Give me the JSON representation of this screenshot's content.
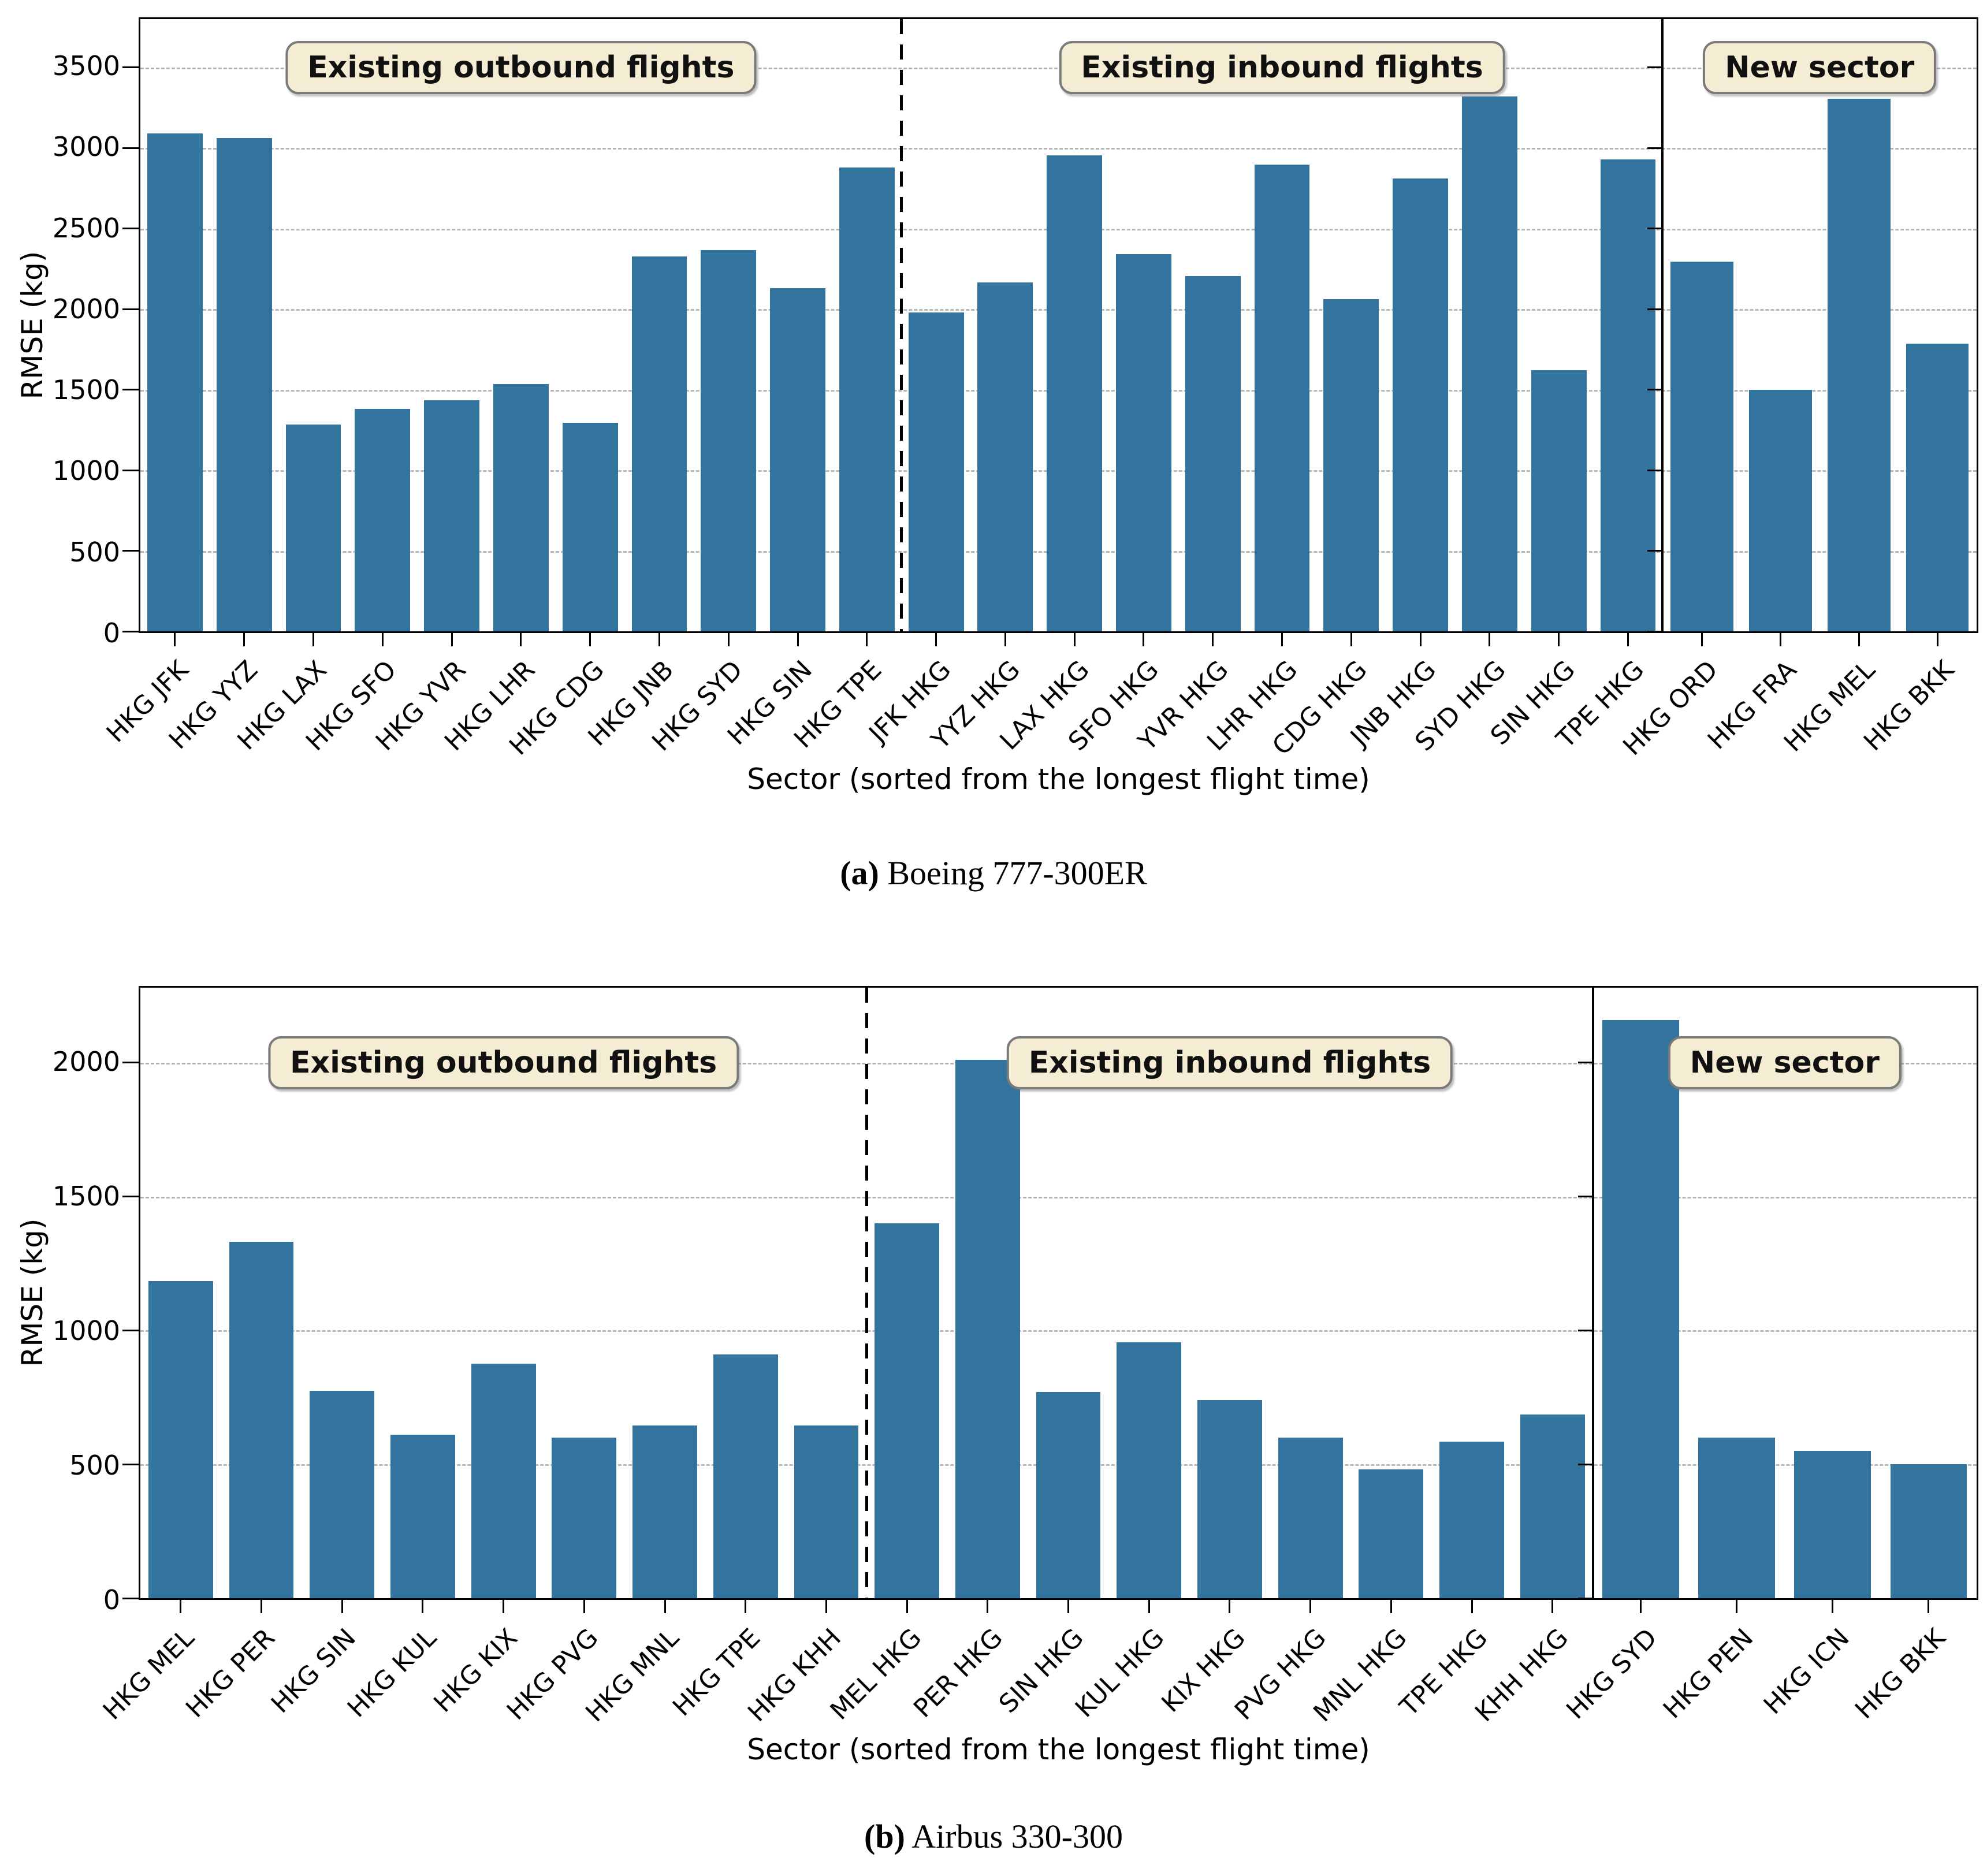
{
  "colors": {
    "bar": "#33749f",
    "annotation_bg": "#f5ecd4",
    "annotation_border": "#7a7a7a",
    "grid": "#b8b8b8",
    "separator": "#000000"
  },
  "chart_data": [
    {
      "type": "bar",
      "caption": {
        "prefix": "(a)",
        "text": "Boeing 777-300ER"
      },
      "ylabel": "RMSE (kg)",
      "xlabel": "Sector (sorted from the longest flight time)",
      "ylim": [
        0,
        3800
      ],
      "yticks": [
        0,
        500,
        1000,
        1500,
        2000,
        2500,
        3000,
        3500
      ],
      "grid": "horizontal-dashed",
      "legend_position": "none",
      "main_panel_fraction": 0.829,
      "sections": [
        {
          "label": "Existing outbound flights",
          "categories": [
            "HKG JFK",
            "HKG YYZ",
            "HKG LAX",
            "HKG SFO",
            "HKG YVR",
            "HKG LHR",
            "HKG CDG",
            "HKG JNB",
            "HKG SYD",
            "HKG SIN",
            "HKG TPE"
          ],
          "values": [
            3090,
            3060,
            1285,
            1380,
            1435,
            1535,
            1295,
            2325,
            2365,
            2130,
            2880
          ]
        },
        {
          "label": "Existing inbound flights",
          "categories": [
            "JFK HKG",
            "YYZ HKG",
            "LAX HKG",
            "SFO HKG",
            "YVR HKG",
            "LHR HKG",
            "CDG HKG",
            "JNB HKG",
            "SYD HKG",
            "SIN HKG",
            "TPE HKG"
          ],
          "values": [
            1980,
            2165,
            2955,
            2340,
            2205,
            2895,
            2060,
            2810,
            3320,
            1620,
            2930
          ]
        },
        {
          "label": "New sector",
          "categories": [
            "HKG ORD",
            "HKG FRA",
            "HKG MEL",
            "HKG BKK"
          ],
          "values": [
            2295,
            1500,
            3305,
            1785
          ]
        }
      ]
    },
    {
      "type": "bar",
      "caption": {
        "prefix": "(b)",
        "text": "Airbus 330-300"
      },
      "ylabel": "RMSE (kg)",
      "xlabel": "Sector (sorted from the longest flight time)",
      "ylim": [
        0,
        2280
      ],
      "yticks": [
        0,
        500,
        1000,
        1500,
        2000
      ],
      "grid": "horizontal-dashed",
      "legend_position": "none",
      "main_panel_fraction": 0.791,
      "sections": [
        {
          "label": "Existing outbound flights",
          "categories": [
            "HKG MEL",
            "HKG PER",
            "HKG SIN",
            "HKG KUL",
            "HKG KIX",
            "HKG PVG",
            "HKG MNL",
            "HKG TPE",
            "HKG KHH"
          ],
          "values": [
            1185,
            1330,
            775,
            610,
            875,
            600,
            645,
            910,
            645
          ]
        },
        {
          "label": "Existing inbound flights",
          "categories": [
            "MEL HKG",
            "PER HKG",
            "SIN HKG",
            "KUL HKG",
            "KIX HKG",
            "PVG HKG",
            "MNL HKG",
            "TPE HKG",
            "KHH HKG"
          ],
          "values": [
            1400,
            2010,
            770,
            955,
            740,
            600,
            480,
            585,
            685
          ]
        },
        {
          "label": "New sector",
          "categories": [
            "HKG SYD",
            "HKG PEN",
            "HKG ICN",
            "HKG BKK"
          ],
          "values": [
            2160,
            600,
            550,
            500
          ]
        }
      ]
    }
  ]
}
